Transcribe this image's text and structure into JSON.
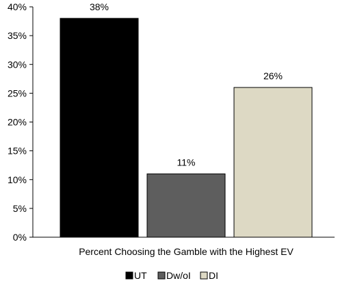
{
  "chart_data": {
    "type": "bar",
    "categories": [
      "UT",
      "Dw/oI",
      "DI"
    ],
    "values": [
      38,
      11,
      26
    ],
    "value_labels": [
      "38%",
      "11%",
      "26%"
    ],
    "colors": [
      "#000000",
      "#5e5e5e",
      "#ddd9c4"
    ],
    "title": "",
    "xlabel": "Percent Choosing the Gamble with the Highest EV",
    "ylabel": "",
    "ylim": [
      0,
      40
    ],
    "yticks": [
      0,
      5,
      10,
      15,
      20,
      25,
      30,
      35,
      40
    ],
    "ytick_labels": [
      "0%",
      "5%",
      "10%",
      "15%",
      "20%",
      "25%",
      "30%",
      "35%",
      "40%"
    ],
    "grid": false,
    "legend_position": "bottom"
  }
}
